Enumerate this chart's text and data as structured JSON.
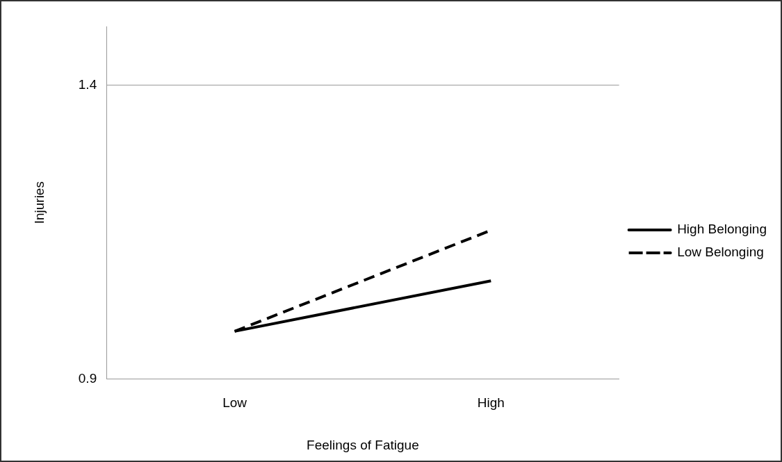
{
  "chart_data": {
    "type": "line",
    "xlabel": "Feelings of Fatigue",
    "ylabel": "Injuries",
    "categories": [
      "Low",
      "High"
    ],
    "series": [
      {
        "name": "High Belonging",
        "color": "#000000",
        "line_style": "solid",
        "values": [
          0.981,
          1.067
        ]
      },
      {
        "name": "Low Belonging",
        "color": "#000000",
        "line_style": "dashed",
        "values": [
          0.981,
          1.153
        ]
      }
    ],
    "ylim": [
      0.9,
      1.5
    ],
    "yticks": [
      0.9,
      1.4
    ],
    "grid": "y",
    "legend": "right",
    "marker": "none"
  }
}
